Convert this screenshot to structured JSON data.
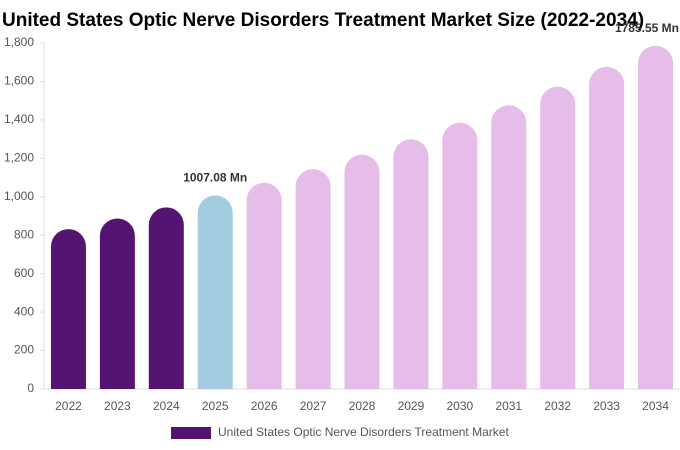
{
  "chart_data": {
    "type": "bar",
    "title": "United States Optic Nerve Disorders Treatment Market Size (2022-2034)",
    "categories": [
      "2022",
      "2023",
      "2024",
      "2025",
      "2026",
      "2027",
      "2028",
      "2029",
      "2030",
      "2031",
      "2032",
      "2033",
      "2034"
    ],
    "series": [
      {
        "name": "United States Optic Nerve Disorders Treatment Market",
        "color": "#541472",
        "colors": [
          "#541472",
          "#541472",
          "#541472",
          "#a3cce0",
          "#e6bce9",
          "#e6bce9",
          "#e6bce9",
          "#e6bce9",
          "#e6bce9",
          "#e6bce9",
          "#e6bce9",
          "#e6bce9",
          "#e6bce9"
        ],
        "values": [
          832,
          887,
          945,
          1007.08,
          1073,
          1144,
          1219,
          1299,
          1385,
          1476,
          1573,
          1676,
          1785.55
        ],
        "value_labels": [
          null,
          null,
          null,
          "1007.08 Mn",
          null,
          null,
          null,
          null,
          null,
          null,
          null,
          null,
          "1785.55 Mn"
        ]
      }
    ],
    "ylim": [
      0,
      1800
    ],
    "yticks": [
      0,
      200,
      400,
      600,
      800,
      {
        "value": 1000,
        "label": "1,000"
      },
      {
        "value": 1200,
        "label": "1,200"
      },
      {
        "value": 1400,
        "label": "1,400"
      },
      {
        "value": 1600,
        "label": "1,600"
      },
      {
        "value": 1800,
        "label": "1,800"
      }
    ],
    "legend": "bottom",
    "grid": false
  }
}
